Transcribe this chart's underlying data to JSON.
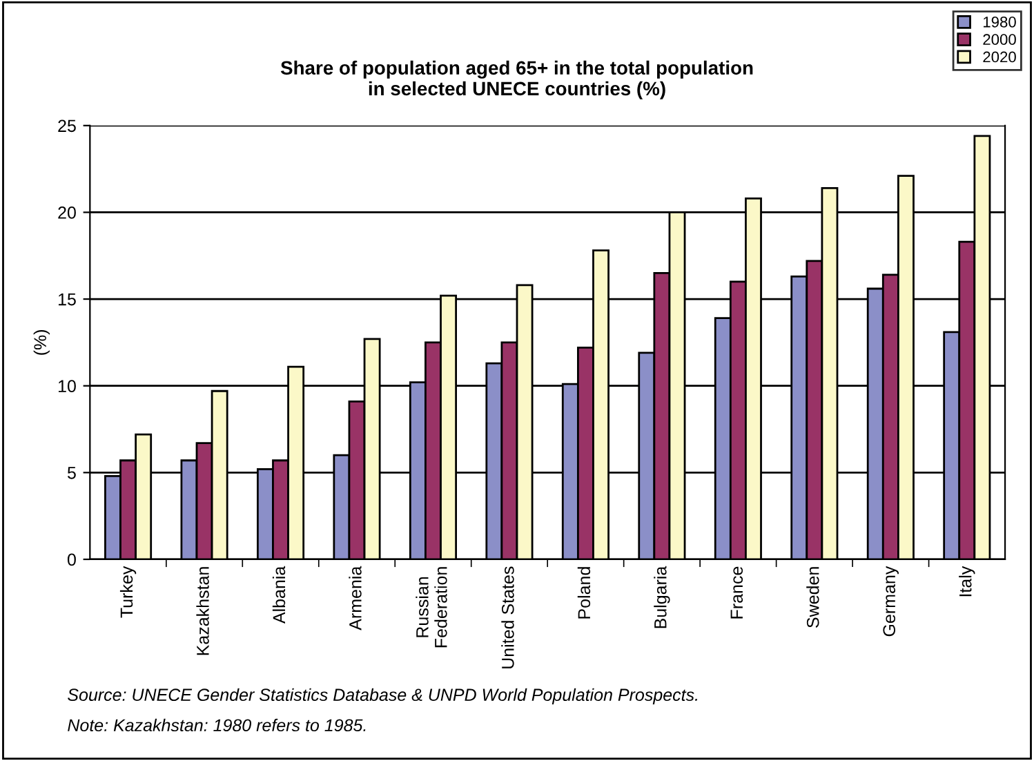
{
  "chart_data": {
    "type": "bar",
    "title": "Share of population aged 65+ in the total population\nin selected UNECE countries (%)",
    "ylabel": "(%)",
    "categories": [
      "Turkey",
      "Kazakhstan",
      "Albania",
      "Armenia",
      "Russian\nFederation",
      "United States",
      "Poland",
      "Bulgaria",
      "France",
      "Sweden",
      "Germany",
      "Italy"
    ],
    "series": [
      {
        "name": "1980",
        "color": "#8b8fc8",
        "values": [
          4.8,
          5.7,
          5.2,
          6.0,
          10.2,
          11.3,
          10.1,
          11.9,
          13.9,
          16.3,
          15.6,
          13.1
        ]
      },
      {
        "name": "2000",
        "color": "#993366",
        "values": [
          5.7,
          6.7,
          5.7,
          9.1,
          12.5,
          12.5,
          12.2,
          16.5,
          16.0,
          17.2,
          16.4,
          18.3
        ]
      },
      {
        "name": "2020",
        "color": "#fbf8c8",
        "values": [
          7.2,
          9.7,
          11.1,
          12.7,
          15.2,
          15.8,
          17.8,
          20.0,
          20.8,
          21.4,
          22.1,
          24.4
        ]
      }
    ],
    "ylim": [
      0,
      25
    ],
    "yticks": [
      0,
      5,
      10,
      15,
      20,
      25
    ],
    "grid": "y",
    "legend": "top right",
    "annotations": [
      "Source: UNECE Gender Statistics Database & UNPD World Population Prospects.",
      "Note: Kazakhstan: 1980 refers to 1985."
    ]
  }
}
